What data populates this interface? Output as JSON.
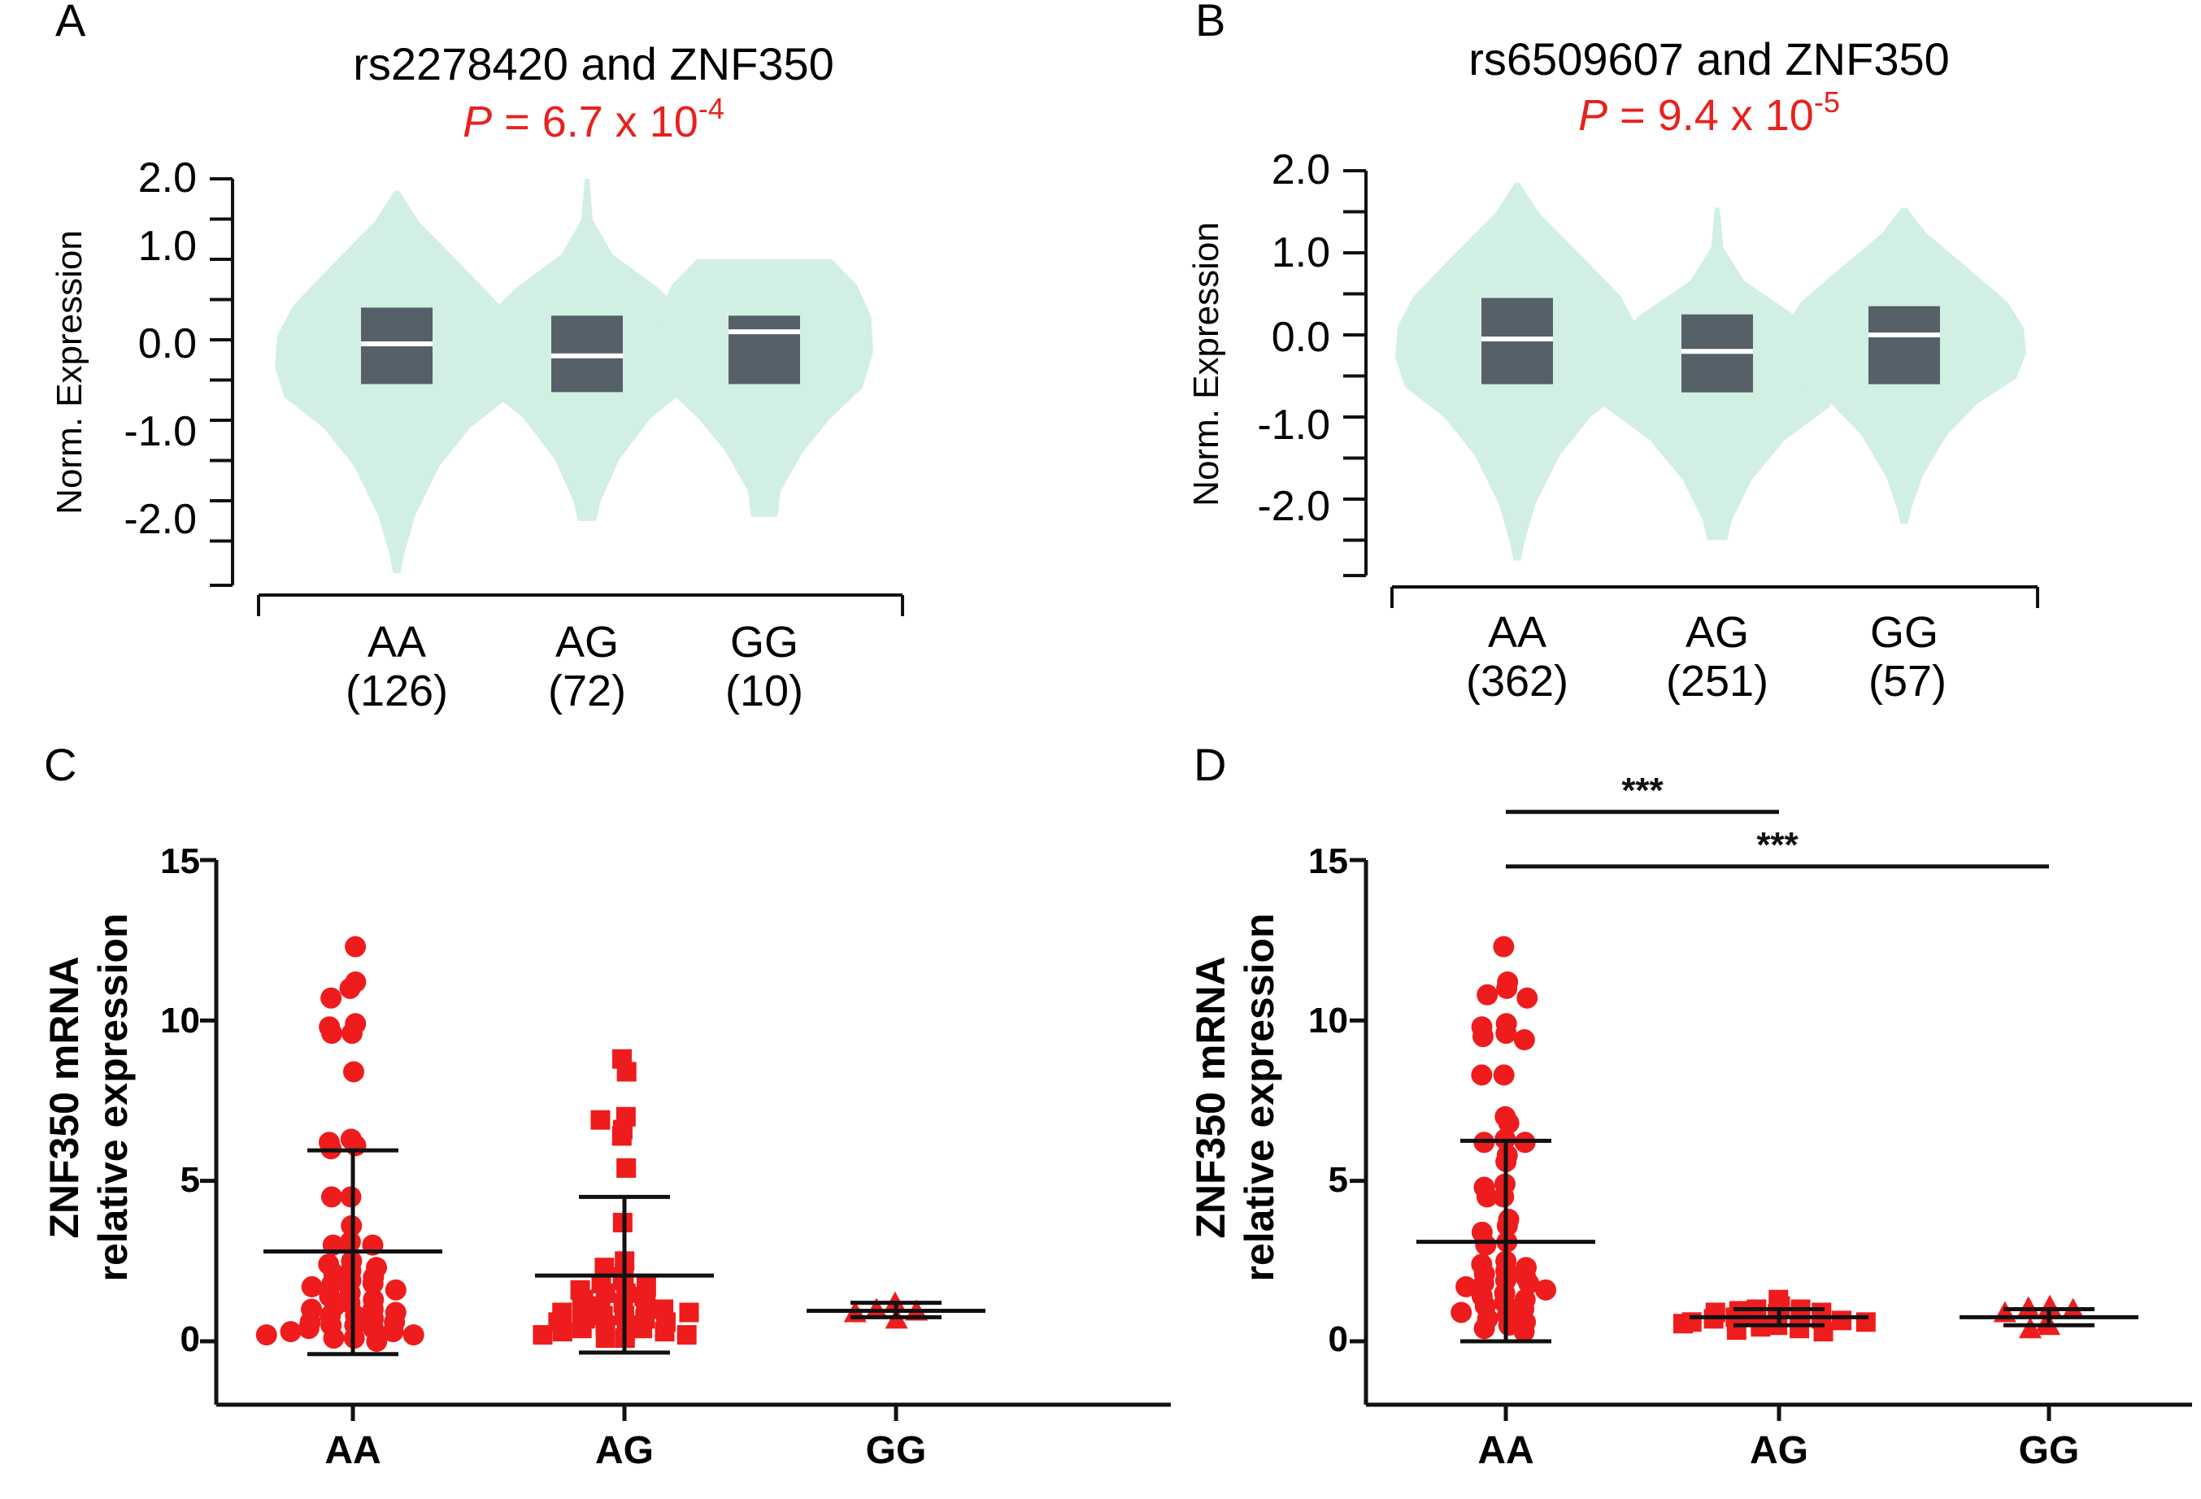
{
  "colors": {
    "violin_fill": "#d2efe3",
    "box_fill": "#566068",
    "median": "#ffffff",
    "p_value": "#e8211d",
    "points": "#ee1c1c",
    "axis": "#111111"
  },
  "chart_data": [
    {
      "panel": "A",
      "type": "violin",
      "title": "rs2278420 and ZNF350",
      "p_value": {
        "italic_label": "P",
        "rest": " = 6.7 x 10",
        "exponent": "-4"
      },
      "ylabel": "Norm. Expression",
      "ylim": [
        -2.9,
        2.0
      ],
      "y_ticks": [
        2.0,
        1.5,
        1.0,
        0.5,
        0.0,
        -0.5,
        -1.0,
        -1.5,
        -2.0,
        -2.5
      ],
      "y_tick_labels": [
        "2.0",
        "1.0",
        "0.0",
        "-1.0",
        "-2.0"
      ],
      "categories": [
        {
          "label": "AA",
          "n": "(126)",
          "box_q1": -0.55,
          "box_q3": 0.4,
          "median": -0.05,
          "violin_min": -2.9,
          "violin_max": 1.85,
          "shape": "wide-top"
        },
        {
          "label": "AG",
          "n": "(72)",
          "box_q1": -0.65,
          "box_q3": 0.3,
          "median": -0.2,
          "violin_min": -2.25,
          "violin_max": 2.0,
          "shape": "spike-top"
        },
        {
          "label": "GG",
          "n": "(10)",
          "box_q1": -0.55,
          "box_q3": 0.3,
          "median": 0.1,
          "violin_min": -2.2,
          "violin_max": 1.0,
          "shape": "flat-top"
        }
      ]
    },
    {
      "panel": "B",
      "type": "violin",
      "title": "rs6509607 and ZNF350",
      "p_value": {
        "italic_label": "P",
        "rest": " = 9.4 x 10",
        "exponent": "-5"
      },
      "ylabel": "Norm. Expression",
      "ylim": [
        -2.9,
        2.0
      ],
      "y_ticks": [
        2.0,
        1.5,
        1.0,
        0.5,
        0.0,
        -0.5,
        -1.0,
        -1.5,
        -2.0,
        -2.5
      ],
      "y_tick_labels": [
        "2.0",
        "1.0",
        "0.0",
        "-1.0",
        "-2.0"
      ],
      "categories": [
        {
          "label": "AA",
          "n": "(362)",
          "box_q1": -0.6,
          "box_q3": 0.45,
          "median": -0.05,
          "violin_min": -2.75,
          "violin_max": 1.85,
          "shape": "wide-top"
        },
        {
          "label": "AG",
          "n": "(251)",
          "box_q1": -0.7,
          "box_q3": 0.25,
          "median": -0.2,
          "violin_min": -2.5,
          "violin_max": 1.55,
          "shape": "spike-top"
        },
        {
          "label": "GG",
          "n": "(57)",
          "box_q1": -0.6,
          "box_q3": 0.35,
          "median": -0.0,
          "violin_min": -2.3,
          "violin_max": 1.55,
          "shape": "wide-top"
        }
      ]
    },
    {
      "panel": "C",
      "type": "scatter",
      "ylabel": [
        "ZNF350 mRNA",
        "relative expression"
      ],
      "ylim": [
        -2,
        15
      ],
      "y_ticks": [
        15,
        10,
        5,
        0
      ],
      "y_tick_labels": [
        "15",
        "10",
        "5",
        "0"
      ],
      "significance": [],
      "groups": [
        {
          "label": "AA",
          "marker": "circle",
          "mean": 2.8,
          "sd_low": -0.4,
          "sd_high": 5.95,
          "points": [
            12.3,
            11.2,
            11.0,
            10.7,
            9.9,
            9.8,
            9.6,
            9.6,
            8.4,
            6.3,
            6.2,
            6.1,
            6.0,
            4.5,
            4.5,
            3.6,
            3.1,
            3.0,
            3.0,
            2.5,
            2.4,
            2.3,
            2.2,
            2.1,
            2.0,
            1.9,
            1.8,
            1.8,
            1.7,
            1.6,
            1.5,
            1.4,
            1.3,
            1.2,
            1.1,
            1.0,
            1.0,
            0.9,
            0.8,
            0.8,
            0.7,
            0.6,
            0.6,
            0.5,
            0.5,
            0.4,
            0.4,
            0.3,
            0.3,
            0.2,
            0.2,
            0.1,
            0.1,
            0.0
          ]
        },
        {
          "label": "AG",
          "marker": "square",
          "mean": 2.05,
          "sd_low": -0.35,
          "sd_high": 4.5,
          "points": [
            8.8,
            8.4,
            7.0,
            6.9,
            6.6,
            6.4,
            5.4,
            3.7,
            2.5,
            2.3,
            2.0,
            1.9,
            1.8,
            1.7,
            1.6,
            1.5,
            1.5,
            1.4,
            1.3,
            1.2,
            1.1,
            1.1,
            1.0,
            1.0,
            0.9,
            0.9,
            0.8,
            0.8,
            0.7,
            0.7,
            0.6,
            0.6,
            0.5,
            0.5,
            0.4,
            0.4,
            0.3,
            0.3,
            0.2,
            0.2,
            0.1,
            0.1
          ]
        },
        {
          "label": "GG",
          "marker": "triangle",
          "mean": 0.95,
          "sd_low": 0.75,
          "sd_high": 1.2,
          "points": [
            1.2,
            1.0,
            0.95,
            0.9,
            0.7
          ]
        }
      ]
    },
    {
      "panel": "D",
      "type": "scatter",
      "ylabel": [
        "ZNF350 mRNA",
        "relative expression"
      ],
      "ylim": [
        -2,
        15
      ],
      "y_ticks": [
        15,
        10,
        5,
        0
      ],
      "y_tick_labels": [
        "15",
        "10",
        "5",
        "0"
      ],
      "significance": [
        {
          "from": "AA",
          "to": "AG",
          "label": "***",
          "y": 16.5
        },
        {
          "from": "AA",
          "to": "GG",
          "label": "***",
          "y": 14.8
        }
      ],
      "groups": [
        {
          "label": "AA",
          "marker": "circle",
          "mean": 3.1,
          "sd_low": 0.0,
          "sd_high": 6.25,
          "points": [
            12.3,
            11.2,
            11.0,
            10.8,
            10.7,
            9.9,
            9.8,
            9.6,
            9.5,
            9.4,
            8.3,
            8.3,
            7.0,
            6.8,
            6.3,
            6.2,
            6.2,
            5.8,
            5.6,
            4.9,
            4.8,
            4.5,
            4.5,
            3.8,
            3.6,
            3.4,
            3.1,
            3.0,
            2.5,
            2.4,
            2.3,
            2.2,
            2.1,
            2.0,
            1.9,
            1.8,
            1.8,
            1.7,
            1.6,
            1.5,
            1.4,
            1.3,
            1.2,
            1.1,
            1.0,
            0.9,
            0.8,
            0.7,
            0.6,
            0.5,
            0.4,
            0.3
          ]
        },
        {
          "label": "AG",
          "marker": "square",
          "mean": 0.75,
          "sd_low": 0.5,
          "sd_high": 1.0,
          "points": [
            1.3,
            1.1,
            1.0,
            1.0,
            0.95,
            0.9,
            0.9,
            0.85,
            0.8,
            0.8,
            0.75,
            0.7,
            0.7,
            0.65,
            0.6,
            0.6,
            0.55,
            0.5,
            0.45,
            0.4,
            0.35,
            0.3
          ]
        },
        {
          "label": "GG",
          "marker": "triangle",
          "mean": 0.75,
          "sd_low": 0.5,
          "sd_high": 1.0,
          "points": [
            1.1,
            1.05,
            1.0,
            0.9,
            0.6,
            0.5,
            0.4
          ]
        }
      ]
    }
  ]
}
